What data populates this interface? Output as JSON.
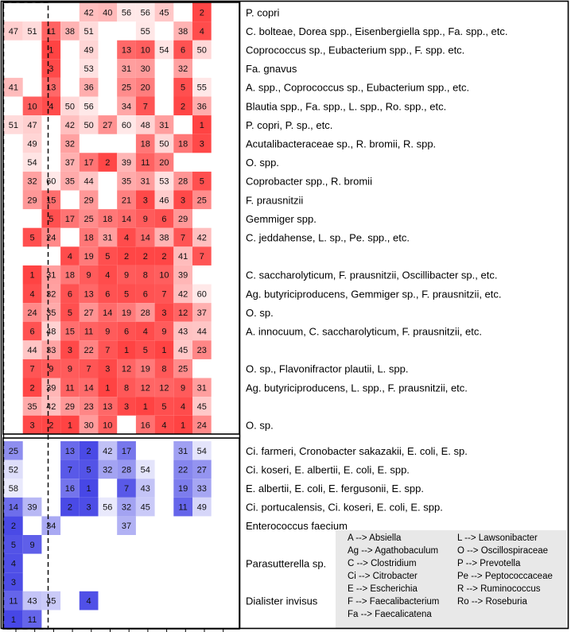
{
  "colors": {
    "pos_base": "#ff1a1a",
    "neg_base": "#1f1fe0",
    "frame": "#000000",
    "legend_bg": "#e8e8e8"
  },
  "chart_data": {
    "type": "heatmap",
    "title": "",
    "xlabel": "",
    "ylabel": "",
    "n_columns": 11,
    "pos_rows": [
      {
        "label": "P. copri",
        "values": [
          null,
          null,
          null,
          null,
          42,
          40,
          56,
          56,
          45,
          null,
          2
        ]
      },
      {
        "label": "C. bolteae, Dorea spp., Eisenbergiella spp., Fa. spp., etc.",
        "values": [
          47,
          51,
          11,
          38,
          51,
          null,
          null,
          55,
          null,
          38,
          4
        ]
      },
      {
        "label": "Coprococcus sp., Eubacterium spp., F. spp. etc.",
        "values": [
          null,
          null,
          1,
          null,
          49,
          null,
          13,
          10,
          54,
          6,
          50
        ]
      },
      {
        "label": "Fa. gnavus",
        "values": [
          null,
          null,
          3,
          null,
          53,
          null,
          31,
          30,
          null,
          32,
          null
        ]
      },
      {
        "label": "A. spp., Coprococcus sp., Eubacterium spp., etc.",
        "values": [
          41,
          null,
          13,
          null,
          36,
          null,
          25,
          20,
          null,
          5,
          55
        ]
      },
      {
        "label": "Blautia spp., Fa. spp., L. spp., Ro. spp., etc.",
        "values": [
          null,
          10,
          4,
          50,
          56,
          null,
          34,
          7,
          null,
          2,
          36
        ]
      },
      {
        "label": "P. copri, P. sp., etc.",
        "values": [
          51,
          47,
          null,
          42,
          50,
          27,
          60,
          48,
          31,
          null,
          1
        ]
      },
      {
        "label": "Acutalibacteraceae sp., R. bromii, R. spp.",
        "values": [
          null,
          49,
          null,
          32,
          null,
          null,
          null,
          18,
          50,
          18,
          3
        ]
      },
      {
        "label": "O. spp.",
        "values": [
          null,
          54,
          null,
          37,
          17,
          2,
          39,
          11,
          20,
          null,
          null
        ]
      },
      {
        "label": "Coprobacter spp., R. bromii",
        "values": [
          null,
          32,
          60,
          35,
          44,
          null,
          35,
          31,
          53,
          28,
          5
        ]
      },
      {
        "label": "F. prausnitzii",
        "values": [
          null,
          29,
          15,
          null,
          29,
          null,
          21,
          3,
          46,
          3,
          25
        ]
      },
      {
        "label": "Gemmiger spp.",
        "values": [
          null,
          null,
          5,
          17,
          25,
          18,
          14,
          9,
          6,
          29,
          null
        ]
      },
      {
        "label": "C. jeddahense, L. sp., Pe. spp., etc.",
        "values": [
          null,
          5,
          24,
          null,
          18,
          31,
          4,
          14,
          38,
          7,
          42
        ]
      },
      {
        "label": "",
        "values": [
          null,
          null,
          null,
          4,
          19,
          5,
          2,
          2,
          2,
          41,
          7
        ]
      },
      {
        "label": "C. saccharolyticum, F. prausnitzii, Oscillibacter sp., etc.",
        "values": [
          null,
          1,
          31,
          18,
          9,
          4,
          9,
          8,
          10,
          39,
          null
        ]
      },
      {
        "label": "Ag. butyriciproducens, Gemmiger sp., F. prausnitzii, etc.",
        "values": [
          null,
          4,
          32,
          6,
          13,
          6,
          5,
          6,
          7,
          42,
          60
        ]
      },
      {
        "label": "O. sp.",
        "values": [
          null,
          24,
          35,
          5,
          27,
          14,
          19,
          28,
          3,
          12,
          37
        ]
      },
      {
        "label": "A. innocuum, C. saccharolyticum, F. prausnitzii, etc.",
        "values": [
          null,
          6,
          48,
          15,
          11,
          9,
          6,
          4,
          9,
          43,
          44
        ]
      },
      {
        "label": "",
        "values": [
          null,
          44,
          33,
          3,
          22,
          7,
          1,
          5,
          1,
          45,
          23
        ]
      },
      {
        "label": "O. sp., Flavonifractor plautii, L. spp.",
        "values": [
          null,
          7,
          9,
          9,
          7,
          3,
          12,
          19,
          8,
          25,
          null
        ]
      },
      {
        "label": "Ag. butyriciproducens, L. spp., F. prausnitzii, etc.",
        "values": [
          null,
          2,
          39,
          11,
          14,
          1,
          8,
          12,
          12,
          9,
          31
        ]
      },
      {
        "label": "",
        "values": [
          null,
          35,
          42,
          29,
          23,
          13,
          3,
          1,
          5,
          4,
          45
        ]
      },
      {
        "label": "O. sp.",
        "values": [
          null,
          3,
          2,
          1,
          30,
          10,
          null,
          16,
          4,
          1,
          24
        ]
      }
    ],
    "neg_rows": [
      {
        "label": "Ci. farmeri, Cronobacter sakazakii, E. coli, E. sp.",
        "values": [
          25,
          null,
          null,
          13,
          2,
          42,
          17,
          null,
          null,
          31,
          54
        ]
      },
      {
        "label": "Ci. koseri, E. albertii, E. coli, E. spp.",
        "values": [
          52,
          null,
          null,
          7,
          5,
          32,
          28,
          54,
          null,
          22,
          27
        ]
      },
      {
        "label": "E. albertii, E. coli, E. fergusonii, E. spp.",
        "values": [
          58,
          null,
          null,
          16,
          1,
          null,
          7,
          43,
          null,
          19,
          33
        ]
      },
      {
        "label": "Ci. portucalensis, Ci. koseri, E. coli, E. spp.",
        "values": [
          14,
          39,
          null,
          2,
          3,
          56,
          32,
          45,
          null,
          11,
          49
        ]
      },
      {
        "label": "Enterococcus faecium",
        "values": [
          2,
          null,
          34,
          null,
          null,
          null,
          37,
          null,
          null,
          null,
          null
        ]
      },
      {
        "label": "",
        "values": [
          5,
          9,
          null,
          null,
          null,
          null,
          null,
          null,
          null,
          null,
          null
        ]
      },
      {
        "label": "Parasutterella sp.",
        "values": [
          4,
          null,
          null,
          null,
          null,
          null,
          null,
          null,
          null,
          null,
          null
        ]
      },
      {
        "label": "",
        "values": [
          3,
          null,
          null,
          null,
          null,
          null,
          null,
          null,
          null,
          null,
          null
        ]
      },
      {
        "label": "Dialister invisus",
        "values": [
          11,
          43,
          45,
          null,
          4,
          null,
          null,
          null,
          null,
          null,
          null
        ]
      },
      {
        "label": "",
        "values": [
          1,
          11,
          null,
          null,
          null,
          null,
          null,
          null,
          null,
          null,
          null
        ]
      }
    ],
    "legend_left": [
      "A --> Absiella",
      "Ag --> Agathobaculum",
      "C --> Clostridium",
      "Ci --> Citrobacter",
      "E --> Escherichia",
      "F --> Faecalibacterium",
      "Fa --> Faecalicatena"
    ],
    "legend_right": [
      "L --> Lawsonibacter",
      "O --> Oscillospiraceae",
      "P --> Prevotella",
      "Pe --> Peptococcaceae",
      "R --> Ruminococcus",
      "Ro --> Roseburia"
    ]
  }
}
